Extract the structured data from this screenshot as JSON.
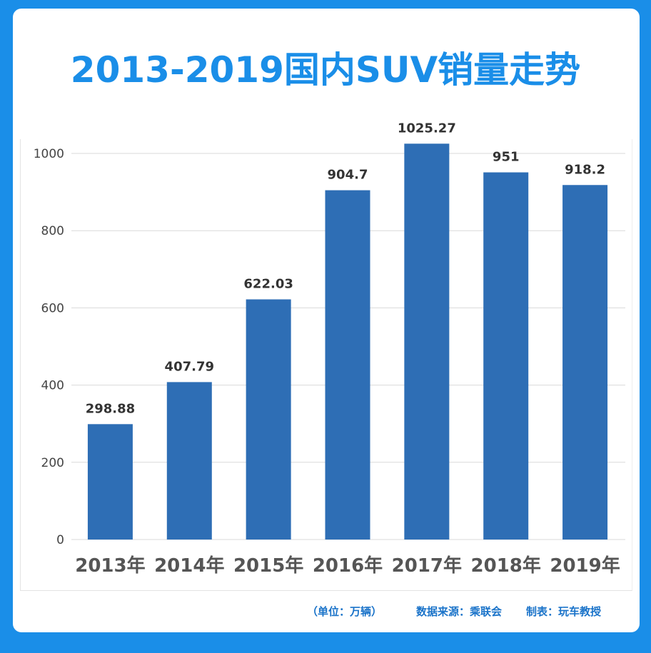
{
  "header": {
    "title": "2013-2019国内SUV销量走势"
  },
  "footer": {
    "unit": "（单位：万辆）",
    "source": "数据来源：乘联会",
    "credit": "制表：玩车教授"
  },
  "colors": {
    "bar": "#2e6eb5",
    "accent": "#1a8ee8",
    "grid": "#d9d9d9"
  },
  "chart_data": {
    "type": "bar",
    "categories": [
      "2013年",
      "2014年",
      "2015年",
      "2016年",
      "2017年",
      "2018年",
      "2019年"
    ],
    "values": [
      298.88,
      407.79,
      622.03,
      904.7,
      1025.27,
      951,
      918.2
    ],
    "value_labels": [
      "298.88",
      "407.79",
      "622.03",
      "904.7",
      "1025.27",
      "951",
      "918.2"
    ],
    "ylim": [
      0,
      1000
    ],
    "yticks": [
      0,
      200,
      400,
      600,
      800,
      1000
    ],
    "grid": true,
    "legend": "none"
  }
}
